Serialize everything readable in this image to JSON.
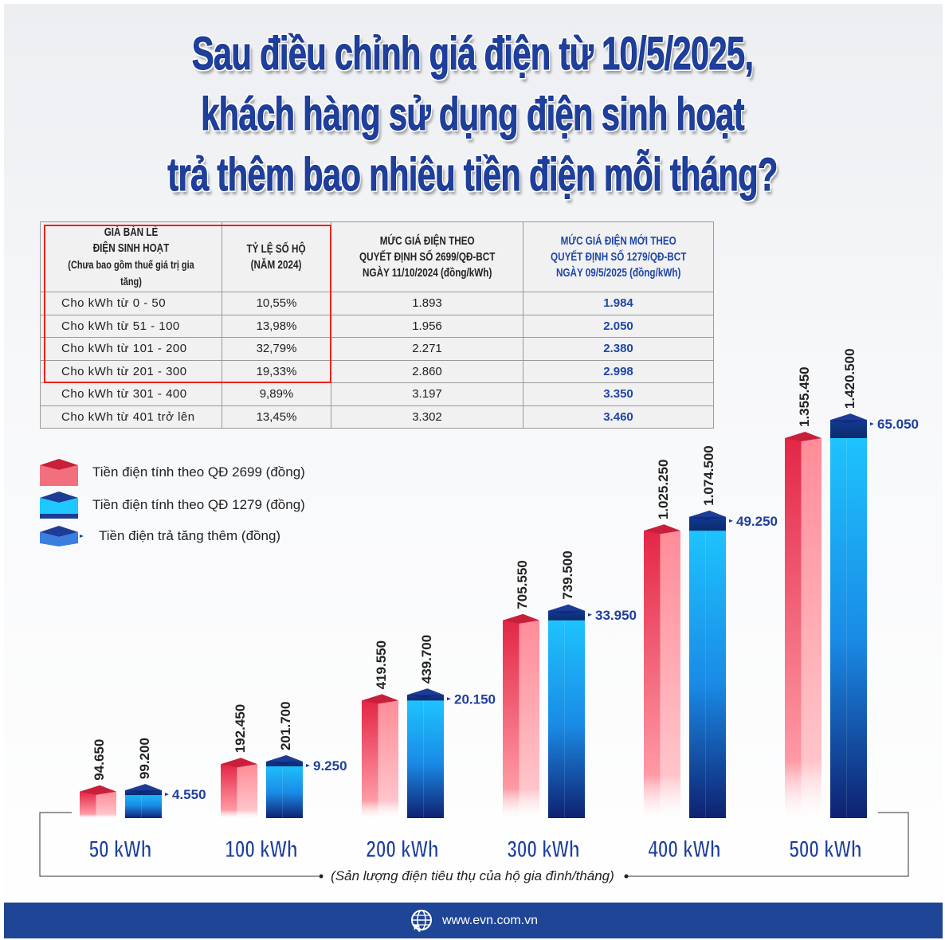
{
  "title": {
    "lines": [
      "Sau điều chỉnh giá điện từ 10/5/2025,",
      "khách hàng sử dụng điện sinh hoạt",
      "trả thêm bao nhiêu tiền điện mỗi tháng?"
    ]
  },
  "table": {
    "headers": [
      [
        "GIÁ BÁN LẺ",
        "ĐIỆN SINH HOẠT",
        "(Chưa bao gồm thuế giá trị gia tăng)"
      ],
      [
        "TỶ LỆ SỐ HỘ",
        "(NĂM 2024)"
      ],
      [
        "MỨC GIÁ ĐIỆN THEO",
        "QUYẾT ĐỊNH SỐ 2699/QĐ-BCT",
        "NGÀY 11/10/2024 (đồng/kWh)"
      ],
      [
        "MỨC GIÁ ĐIỆN MỚI THEO",
        "QUYẾT ĐỊNH SỐ 1279/QĐ-BCT",
        "NGÀY 09/5/2025 (đồng/kWh)"
      ]
    ],
    "rows": [
      [
        "Cho kWh từ 0 - 50",
        "10,55%",
        "1.893",
        "1.984"
      ],
      [
        "Cho kWh từ  51 - 100",
        "13,98%",
        "1.956",
        "2.050"
      ],
      [
        "Cho kWh từ 101 - 200",
        "32,79%",
        "2.271",
        "2.380"
      ],
      [
        "Cho kWh từ 201 - 300",
        "19,33%",
        "2.860",
        "2.998"
      ],
      [
        "Cho kWh từ 301 - 400",
        "9,89%",
        "3.197",
        "3.350"
      ],
      [
        "Cho kWh từ 401 trở lên",
        "13,45%",
        "3.302",
        "3.460"
      ]
    ]
  },
  "legend": [
    "Tiền điện tính theo QĐ 2699 (đồng)",
    "Tiền điện tính theo QĐ 1279 (đồng)",
    "Tiền điện trả tăng thêm (đồng)"
  ],
  "chart_data": {
    "type": "bar",
    "categories": [
      "50 kWh",
      "100 kWh",
      "200 kWh",
      "300 kWh",
      "400 kWh",
      "500 kWh"
    ],
    "series": [
      {
        "name": "Tiền điện tính theo QĐ 2699 (đồng)",
        "values": [
          94650,
          192450,
          419550,
          705550,
          1025250,
          1355450
        ],
        "labels": [
          "94.650",
          "192.450",
          "419.550",
          "705.550",
          "1.025.250",
          "1.355.450"
        ],
        "color": "#e0304a"
      },
      {
        "name": "Tiền điện tính theo QĐ 1279 (đồng)",
        "values": [
          99200,
          201700,
          439700,
          739500,
          1074500,
          1420500
        ],
        "labels": [
          "99.200",
          "201.700",
          "439.700",
          "739.500",
          "1.074.500",
          "1.420.500"
        ],
        "color": "#1ec8ff"
      },
      {
        "name": "Tiền điện trả tăng thêm (đồng)",
        "values": [
          4550,
          9250,
          20150,
          33950,
          49250,
          65050
        ],
        "labels": [
          "4.550",
          "9.250",
          "20.150",
          "33.950",
          "49.250",
          "65.050"
        ],
        "color": "#1e3f9c"
      }
    ],
    "xlabel": "(Sản lượng điện tiêu thụ của hộ gia đình/tháng)"
  },
  "footer": {
    "url": "www.evn.com.vn"
  }
}
